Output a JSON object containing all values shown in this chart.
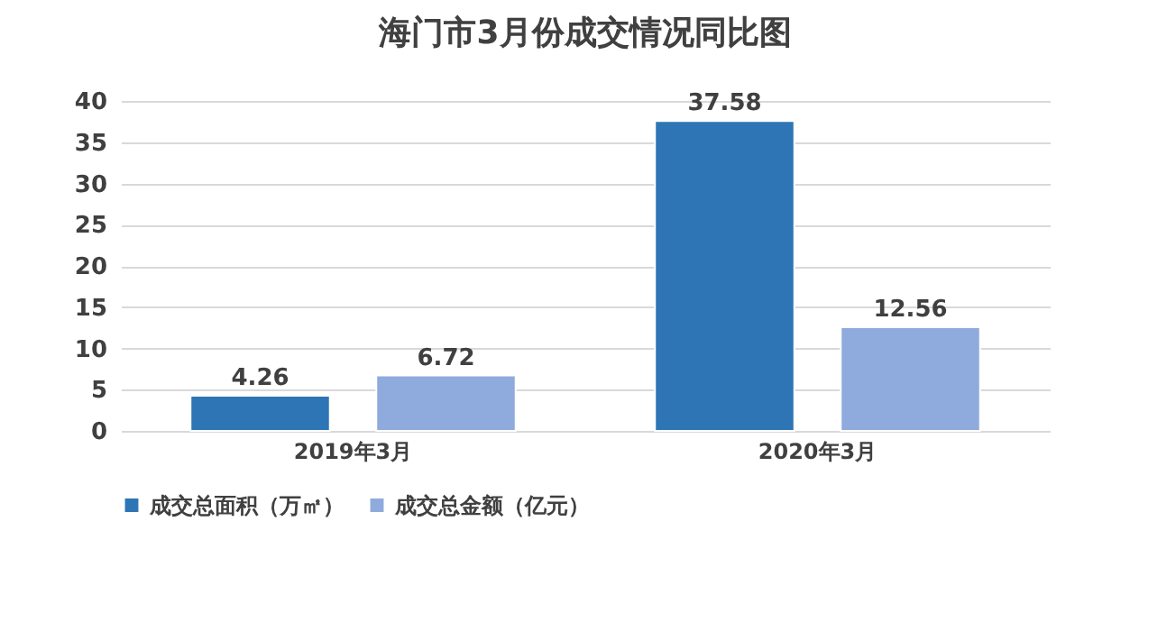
{
  "chart_data": {
    "type": "bar",
    "title": "海门市3月份成交情况同比图",
    "categories": [
      "2019年3月",
      "2020年3月"
    ],
    "series": [
      {
        "name": "成交总面积（万㎡）",
        "color": "#2e75b6",
        "values": [
          4.26,
          37.58
        ]
      },
      {
        "name": "成交总金额（亿元）",
        "color": "#8faadc",
        "values": [
          6.72,
          12.56
        ]
      }
    ],
    "ylim": [
      0,
      40
    ],
    "yticks": [
      0,
      5,
      10,
      15,
      20,
      25,
      30,
      35,
      40
    ],
    "grid": "y",
    "legend": "bottom",
    "data_labels": true
  }
}
